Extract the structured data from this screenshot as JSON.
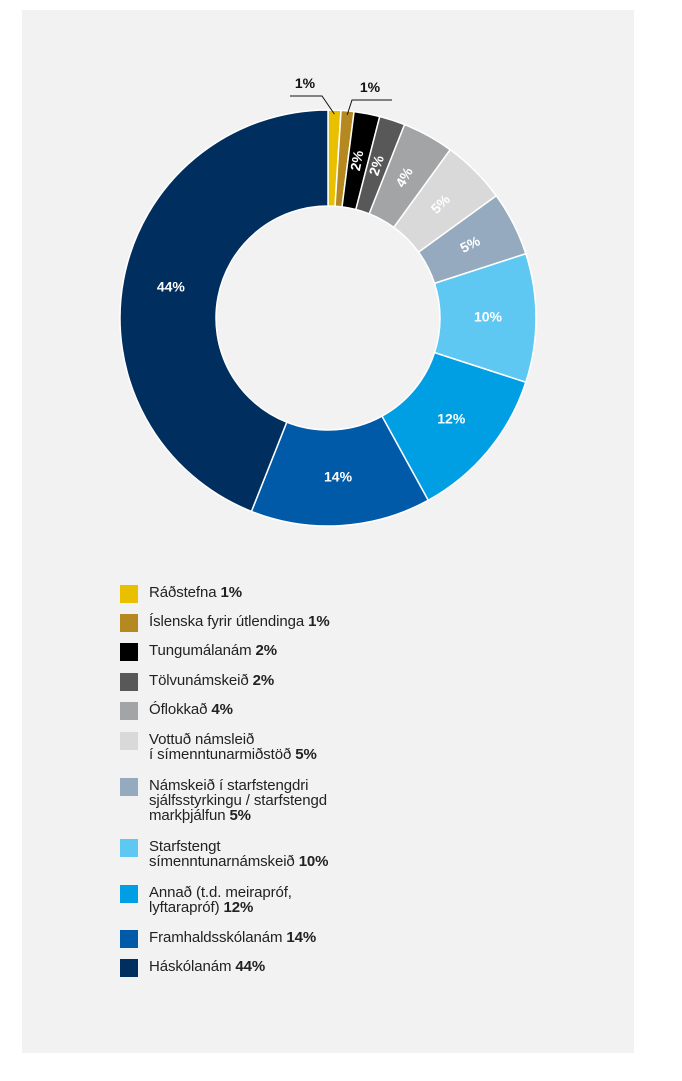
{
  "chart_data": {
    "type": "pie",
    "donut": true,
    "categories": [
      "Ráðstefna",
      "Íslenska fyrir útlendinga",
      "Tungumálanám",
      "Tölvunámskeið",
      "Óflokkað",
      "Vottuð námsleið í símenntunarmiðstöð",
      "Námskeið í starfstengdri sjálfsstyrkingu / starfstengd markþjálfun",
      "Starfstengt símenntunarnámskeið",
      "Annað (t.d. meirapróf, lyftarapróf)",
      "Framhaldsskólanám",
      "Háskólanám"
    ],
    "values": [
      1,
      1,
      2,
      2,
      4,
      5,
      5,
      10,
      12,
      14,
      44
    ],
    "labels": [
      "1%",
      "1%",
      "2%",
      "2%",
      "4%",
      "5%",
      "5%",
      "10%",
      "12%",
      "14%",
      "44%"
    ],
    "colors": [
      "#e8c000",
      "#b5891f",
      "#000000",
      "#585858",
      "#a3a4a6",
      "#d9d9d9",
      "#95aabe",
      "#5ec8f2",
      "#009fe3",
      "#005aa8",
      "#002f5f"
    ],
    "legend_placement": "bottom"
  },
  "legend": [
    {
      "lines": [
        "Ráðstefna"
      ],
      "pct": "1%"
    },
    {
      "lines": [
        "Íslenska fyrir útlendinga"
      ],
      "pct": "1%"
    },
    {
      "lines": [
        "Tungumálanám"
      ],
      "pct": "2%"
    },
    {
      "lines": [
        "Tölvunámskeið"
      ],
      "pct": "2%"
    },
    {
      "lines": [
        "Óflokkað"
      ],
      "pct": "4%"
    },
    {
      "lines": [
        "Vottuð námsleið",
        "í símenntunarmiðstöð"
      ],
      "pct": "5%"
    },
    {
      "lines": [
        "Námskeið í starfstengdri",
        "sjálfsstyrkingu / starfstengd",
        "markþjálfun"
      ],
      "pct": "5%"
    },
    {
      "lines": [
        "Starfstengt",
        "símenntunarnámskeið"
      ],
      "pct": "10%"
    },
    {
      "lines": [
        "Annað (t.d. meirapróf,",
        "lyftarapróf)"
      ],
      "pct": "12%"
    },
    {
      "lines": [
        "Framhaldsskólanám"
      ],
      "pct": "14%"
    },
    {
      "lines": [
        "Háskólanám"
      ],
      "pct": "44%"
    }
  ]
}
